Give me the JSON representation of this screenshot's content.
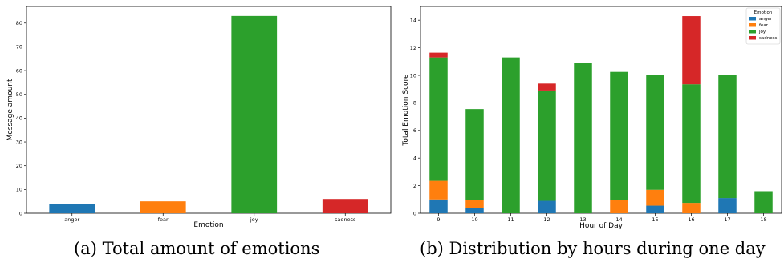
{
  "captions": {
    "a": "(a) Total amount of emotions",
    "b": "(b) Distribution by hours during one day"
  },
  "colors": {
    "anger": "#1f77b4",
    "fear": "#ff7f0e",
    "joy": "#2ca02c",
    "sadness": "#d62728"
  },
  "chart_data": [
    {
      "type": "bar",
      "categories": [
        "anger",
        "fear",
        "joy",
        "sadness"
      ],
      "values": [
        4,
        5,
        83,
        6
      ],
      "xlabel": "Emotion",
      "ylabel": "Message amount",
      "ylim": [
        0,
        87
      ],
      "yticks": [
        0,
        10,
        20,
        30,
        40,
        50,
        60,
        70,
        80
      ],
      "grid": false
    },
    {
      "type": "bar",
      "stacked": true,
      "categories": [
        "9",
        "10",
        "11",
        "12",
        "13",
        "14",
        "15",
        "16",
        "17",
        "18"
      ],
      "series": [
        {
          "name": "anger",
          "values": [
            1.0,
            0.4,
            0,
            0.9,
            0,
            0,
            0.55,
            0,
            1.1,
            0
          ]
        },
        {
          "name": "fear",
          "values": [
            1.35,
            0.55,
            0,
            0,
            0,
            0.95,
            1.15,
            0.75,
            0,
            0
          ]
        },
        {
          "name": "joy",
          "values": [
            8.95,
            6.6,
            11.3,
            8.0,
            10.9,
            9.3,
            8.35,
            8.6,
            8.9,
            1.6
          ]
        },
        {
          "name": "sadness",
          "values": [
            0.35,
            0,
            0,
            0.5,
            0,
            0,
            0,
            4.95,
            0,
            0
          ]
        }
      ],
      "xlabel": "Hour of Day",
      "ylabel": "Total Emotion Score",
      "ylim": [
        0,
        15
      ],
      "yticks": [
        0,
        2,
        4,
        6,
        8,
        10,
        12,
        14
      ],
      "legend": {
        "title": "Emotion",
        "position": "top-right"
      },
      "grid": false
    }
  ]
}
